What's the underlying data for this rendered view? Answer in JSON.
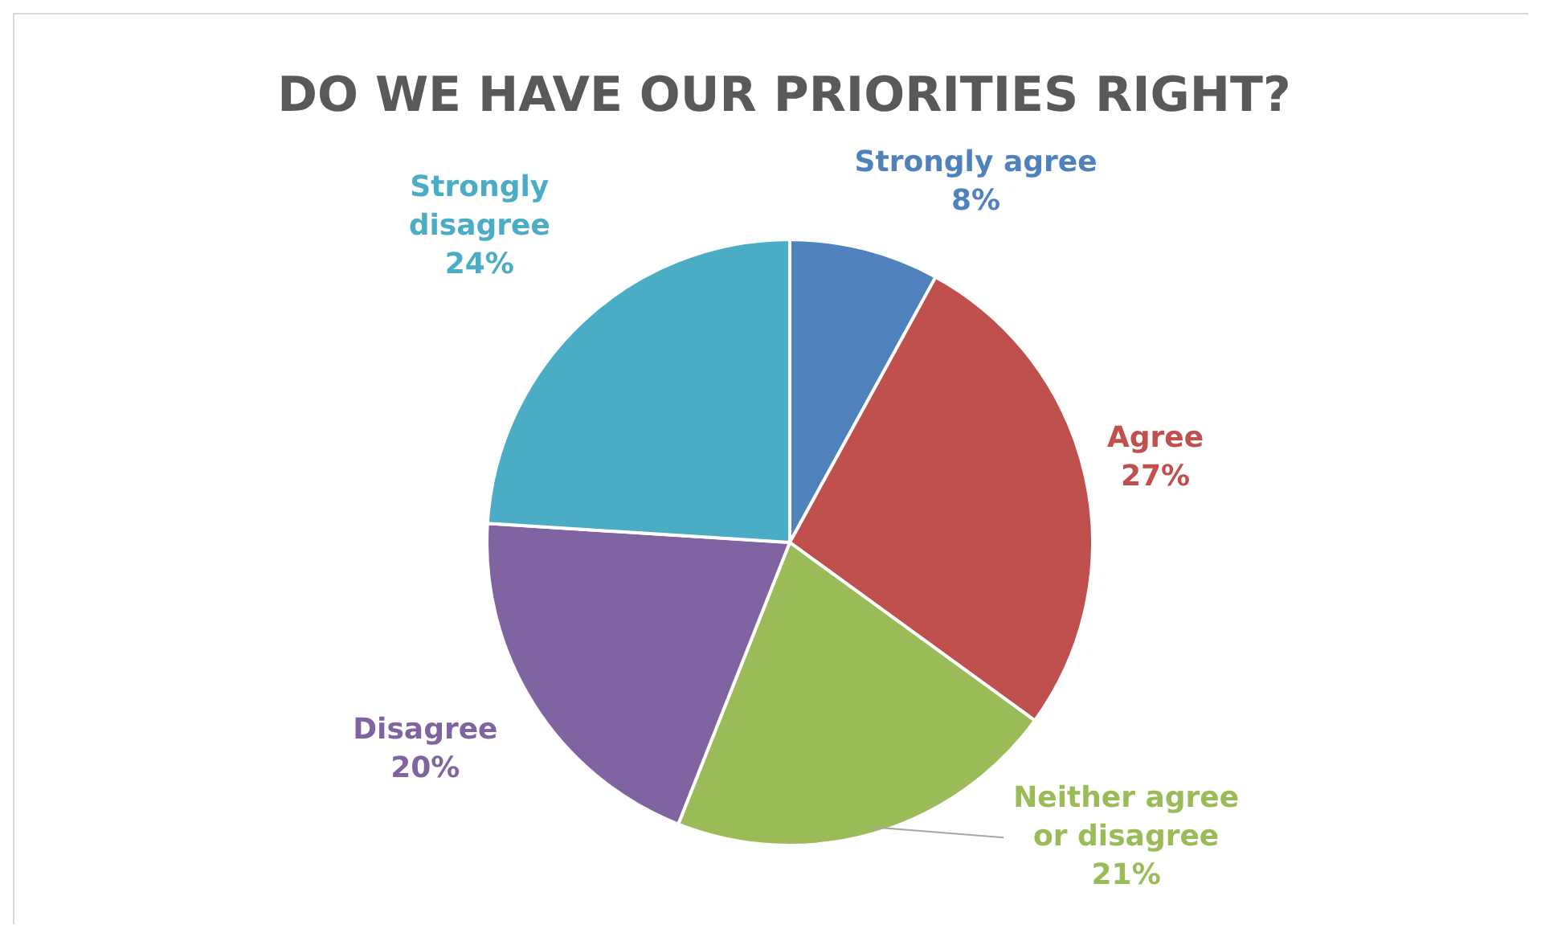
{
  "chart_data": {
    "type": "pie",
    "title": "DO WE HAVE OUR PRIORITIES RIGHT?",
    "categories": [
      "Strongly agree",
      "Agree",
      "Neither agree or disagree",
      "Disagree",
      "Strongly disagree"
    ],
    "values": [
      8,
      27,
      21,
      20,
      24
    ],
    "value_labels": [
      "8%",
      "27%",
      "21%",
      "20%",
      "24%"
    ],
    "colors": [
      "#4f81bd",
      "#c0504d",
      "#9bbb59",
      "#8064a2",
      "#4bacc6"
    ],
    "legend": false
  }
}
